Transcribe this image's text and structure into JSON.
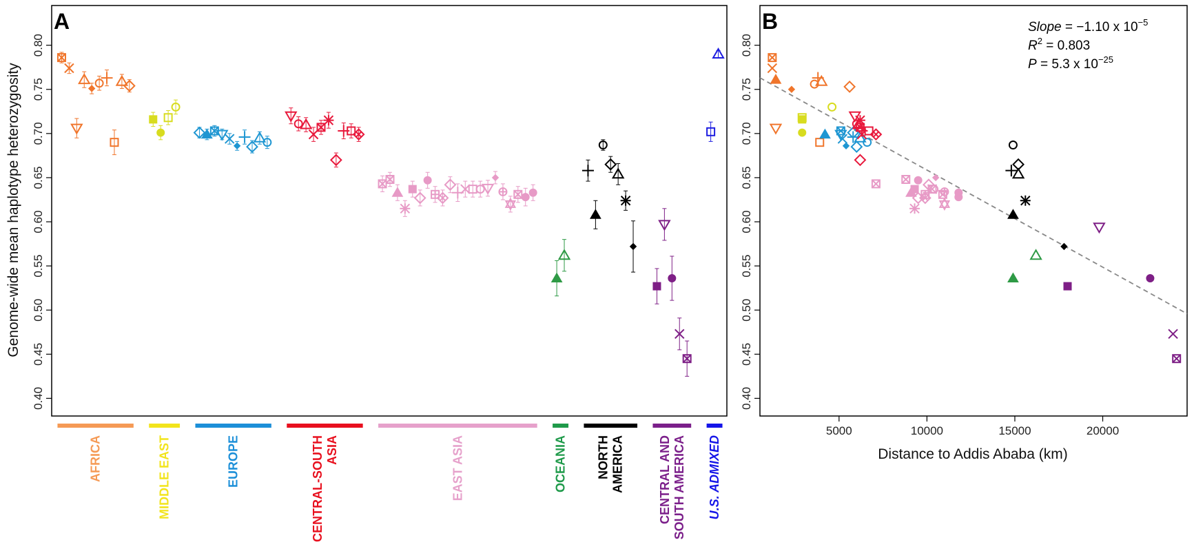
{
  "colors": {
    "AFRICA": "#F0752B",
    "MIDDLE EAST": "#D8DC1F",
    "EUROPE": "#1E96D2",
    "CENTRAL-SOUTH ASIA": "#E8193C",
    "EAST ASIA": "#E79AC6",
    "OCEANIA": "#2E9A45",
    "NORTH AMERICA": "#000000",
    "CENTRAL AND SOUTH AMERICA": "#7E1F86",
    "U.S. ADMIXED": "#1C1CE0"
  },
  "bar_colors": {
    "AFRICA": "#F59A55",
    "MIDDLE EAST": "#F2E41C",
    "EUROPE": "#1C8FD8",
    "CENTRAL-SOUTH ASIA": "#E8101E",
    "EAST ASIA": "#E6A1CB",
    "OCEANIA": "#1F9A4A",
    "NORTH AMERICA": "#000000",
    "CENTRAL AND SOUTH AMERICA": "#7B1F8A",
    "U.S. ADMIXED": "#1515E8"
  },
  "chart_data": [
    {
      "type": "scatter",
      "panel": "A",
      "title": "",
      "ylabel": "Genome-wide mean haplotype heterozygosity",
      "xlabel": "",
      "ylim": [
        0.38,
        0.845
      ],
      "yticks": [
        "0.40",
        "0.45",
        "0.50",
        "0.55",
        "0.60",
        "0.65",
        "0.70",
        "0.75",
        "0.80"
      ],
      "region_labels": [
        {
          "region": "AFRICA",
          "lines": [
            "AFRICA"
          ]
        },
        {
          "region": "MIDDLE EAST",
          "lines": [
            "MIDDLE EAST"
          ]
        },
        {
          "region": "EUROPE",
          "lines": [
            "EUROPE"
          ]
        },
        {
          "region": "CENTRAL-SOUTH ASIA",
          "lines": [
            "CENTRAL-SOUTH",
            "ASIA"
          ]
        },
        {
          "region": "EAST ASIA",
          "lines": [
            "EAST ASIA"
          ]
        },
        {
          "region": "OCEANIA",
          "lines": [
            "OCEANIA"
          ]
        },
        {
          "region": "NORTH AMERICA",
          "lines": [
            "NORTH",
            "AMERICA"
          ]
        },
        {
          "region": "CENTRAL AND SOUTH AMERICA",
          "lines": [
            "CENTRAL AND",
            "SOUTH AMERICA"
          ]
        },
        {
          "region": "U.S. ADMIXED",
          "lines": [
            "U.S. ADMIXED"
          ]
        }
      ],
      "groups": [
        {
          "region": "AFRICA",
          "points": [
            {
              "y": 0.786,
              "err": 0.006,
              "m": "sqx"
            },
            {
              "y": 0.774,
              "err": 0.006,
              "m": "x"
            },
            {
              "y": 0.706,
              "err": 0.011,
              "m": "tridown"
            },
            {
              "y": 0.761,
              "err": 0.009,
              "m": "tri"
            },
            {
              "y": 0.751,
              "err": 0.006,
              "m": "dia"
            },
            {
              "y": 0.757,
              "err": 0.008,
              "m": "circ"
            },
            {
              "y": 0.763,
              "err": 0.009,
              "m": "plus"
            },
            {
              "y": 0.69,
              "err": 0.014,
              "m": "sq"
            },
            {
              "y": 0.759,
              "err": 0.008,
              "m": "tri"
            },
            {
              "y": 0.754,
              "err": 0.007,
              "m": "diamond"
            }
          ]
        },
        {
          "region": "MIDDLE EAST",
          "points": [
            {
              "y": 0.716,
              "err": 0.008,
              "m": "sqf"
            },
            {
              "y": 0.701,
              "err": 0.008,
              "m": "circf"
            },
            {
              "y": 0.718,
              "err": 0.008,
              "m": "sq"
            },
            {
              "y": 0.73,
              "err": 0.008,
              "m": "circ"
            }
          ]
        },
        {
          "region": "EUROPE",
          "points": [
            {
              "y": 0.701,
              "err": 0.006,
              "m": "diamond"
            },
            {
              "y": 0.699,
              "err": 0.006,
              "m": "trif"
            },
            {
              "y": 0.703,
              "err": 0.006,
              "m": "sqx"
            },
            {
              "y": 0.699,
              "err": 0.006,
              "m": "tridown"
            },
            {
              "y": 0.694,
              "err": 0.006,
              "m": "x"
            },
            {
              "y": 0.686,
              "err": 0.005,
              "m": "dia"
            },
            {
              "y": 0.696,
              "err": 0.008,
              "m": "plus"
            },
            {
              "y": 0.685,
              "err": 0.007,
              "m": "diamond"
            },
            {
              "y": 0.695,
              "err": 0.007,
              "m": "tri"
            },
            {
              "y": 0.69,
              "err": 0.007,
              "m": "circ"
            }
          ]
        },
        {
          "region": "CENTRAL-SOUTH ASIA",
          "points": [
            {
              "y": 0.72,
              "err": 0.009,
              "m": "tridown"
            },
            {
              "y": 0.711,
              "err": 0.008,
              "m": "circ"
            },
            {
              "y": 0.71,
              "err": 0.008,
              "m": "tri"
            },
            {
              "y": 0.699,
              "err": 0.008,
              "m": "x"
            },
            {
              "y": 0.707,
              "err": 0.008,
              "m": "sqx"
            },
            {
              "y": 0.715,
              "err": 0.009,
              "m": "star"
            },
            {
              "y": 0.67,
              "err": 0.008,
              "m": "diamond"
            },
            {
              "y": 0.703,
              "err": 0.009,
              "m": "plus"
            },
            {
              "y": 0.703,
              "err": 0.008,
              "m": "sq"
            },
            {
              "y": 0.699,
              "err": 0.008,
              "m": "diax"
            }
          ]
        },
        {
          "region": "EAST ASIA",
          "points": [
            {
              "y": 0.643,
              "err": 0.009,
              "m": "sqx"
            },
            {
              "y": 0.648,
              "err": 0.008,
              "m": "sqx"
            },
            {
              "y": 0.633,
              "err": 0.009,
              "m": "trif"
            },
            {
              "y": 0.615,
              "err": 0.009,
              "m": "star"
            },
            {
              "y": 0.637,
              "err": 0.009,
              "m": "sqf"
            },
            {
              "y": 0.627,
              "err": 0.009,
              "m": "diamond"
            },
            {
              "y": 0.647,
              "err": 0.009,
              "m": "circf"
            },
            {
              "y": 0.631,
              "err": 0.009,
              "m": "sqplus"
            },
            {
              "y": 0.627,
              "err": 0.009,
              "m": "diax"
            },
            {
              "y": 0.642,
              "err": 0.009,
              "m": "diamond"
            },
            {
              "y": 0.633,
              "err": 0.01,
              "m": "plus"
            },
            {
              "y": 0.637,
              "err": 0.009,
              "m": "x"
            },
            {
              "y": 0.637,
              "err": 0.009,
              "m": "sq"
            },
            {
              "y": 0.637,
              "err": 0.009,
              "m": "circ"
            },
            {
              "y": 0.638,
              "err": 0.009,
              "m": "tridown"
            },
            {
              "y": 0.65,
              "err": 0.007,
              "m": "dia"
            },
            {
              "y": 0.634,
              "err": 0.009,
              "m": "circplus"
            },
            {
              "y": 0.62,
              "err": 0.009,
              "m": "stard"
            },
            {
              "y": 0.631,
              "err": 0.009,
              "m": "sqx"
            },
            {
              "y": 0.628,
              "err": 0.01,
              "m": "circf"
            },
            {
              "y": 0.633,
              "err": 0.009,
              "m": "circf"
            }
          ]
        },
        {
          "region": "OCEANIA",
          "points": [
            {
              "y": 0.536,
              "err": 0.02,
              "m": "trif"
            },
            {
              "y": 0.562,
              "err": 0.018,
              "m": "tri"
            }
          ]
        },
        {
          "region": "NORTH AMERICA",
          "points": [
            {
              "y": 0.658,
              "err": 0.012,
              "m": "plus"
            },
            {
              "y": 0.608,
              "err": 0.016,
              "m": "trif"
            },
            {
              "y": 0.687,
              "err": 0.006,
              "m": "circ"
            },
            {
              "y": 0.665,
              "err": 0.009,
              "m": "diamond"
            },
            {
              "y": 0.654,
              "err": 0.012,
              "m": "tri"
            },
            {
              "y": 0.624,
              "err": 0.011,
              "m": "star"
            },
            {
              "y": 0.572,
              "err": 0.029,
              "m": "dia"
            }
          ]
        },
        {
          "region": "CENTRAL AND SOUTH AMERICA",
          "points": [
            {
              "y": 0.527,
              "err": 0.02,
              "m": "sqf"
            },
            {
              "y": 0.597,
              "err": 0.018,
              "m": "tridown"
            },
            {
              "y": 0.536,
              "err": 0.025,
              "m": "circf"
            },
            {
              "y": 0.473,
              "err": 0.018,
              "m": "x"
            },
            {
              "y": 0.445,
              "err": 0.02,
              "m": "sqx"
            }
          ]
        },
        {
          "region": "U.S. ADMIXED",
          "points": [
            {
              "y": 0.702,
              "err": 0.011,
              "m": "sq"
            },
            {
              "y": 0.79,
              "err": 0.004,
              "m": "tri"
            }
          ]
        }
      ]
    },
    {
      "type": "scatter",
      "panel": "B",
      "title": "",
      "xlabel": "Distance to Addis Ababa (km)",
      "ylabel": "",
      "xlim": [
        500,
        24800
      ],
      "ylim": [
        0.38,
        0.845
      ],
      "xticks": [
        "5000",
        "10000",
        "15000",
        "20000"
      ],
      "yticks": [
        "0.40",
        "0.45",
        "0.50",
        "0.55",
        "0.60",
        "0.65",
        "0.70",
        "0.75",
        "0.80"
      ],
      "regression": {
        "slope": -1.1e-05,
        "intercept": 0.7686,
        "line_style": "dashed",
        "color": "#888888"
      },
      "stats": {
        "slope_label": "Slope",
        "slope_value": " = −1.10 x 10",
        "slope_exp": "−5",
        "r2_label": "R",
        "r2_sup": "2",
        "r2_value": " = 0.803",
        "p_label": "P",
        "p_value": " = 5.3 x 10",
        "p_exp": "−25"
      },
      "points": [
        {
          "x": 1200,
          "y": 0.786,
          "r": "AFRICA",
          "m": "sqx"
        },
        {
          "x": 1200,
          "y": 0.774,
          "r": "AFRICA",
          "m": "x"
        },
        {
          "x": 1400,
          "y": 0.761,
          "r": "AFRICA",
          "m": "trif"
        },
        {
          "x": 1400,
          "y": 0.706,
          "r": "AFRICA",
          "m": "tridown"
        },
        {
          "x": 2300,
          "y": 0.75,
          "r": "AFRICA",
          "m": "dia"
        },
        {
          "x": 3600,
          "y": 0.756,
          "r": "AFRICA",
          "m": "circ"
        },
        {
          "x": 3800,
          "y": 0.763,
          "r": "AFRICA",
          "m": "plus"
        },
        {
          "x": 4000,
          "y": 0.759,
          "r": "AFRICA",
          "m": "tri"
        },
        {
          "x": 3900,
          "y": 0.69,
          "r": "AFRICA",
          "m": "sq"
        },
        {
          "x": 5600,
          "y": 0.753,
          "r": "AFRICA",
          "m": "diamond"
        },
        {
          "x": 2900,
          "y": 0.716,
          "r": "MIDDLE EAST",
          "m": "sqf"
        },
        {
          "x": 2900,
          "y": 0.718,
          "r": "MIDDLE EAST",
          "m": "sq"
        },
        {
          "x": 2900,
          "y": 0.701,
          "r": "MIDDLE EAST",
          "m": "circf"
        },
        {
          "x": 4600,
          "y": 0.73,
          "r": "MIDDLE EAST",
          "m": "circ"
        },
        {
          "x": 4200,
          "y": 0.699,
          "r": "EUROPE",
          "m": "trif"
        },
        {
          "x": 5100,
          "y": 0.703,
          "r": "EUROPE",
          "m": "sqx"
        },
        {
          "x": 5100,
          "y": 0.699,
          "r": "EUROPE",
          "m": "tridown"
        },
        {
          "x": 5200,
          "y": 0.694,
          "r": "EUROPE",
          "m": "x"
        },
        {
          "x": 5400,
          "y": 0.686,
          "r": "EUROPE",
          "m": "dia"
        },
        {
          "x": 5800,
          "y": 0.696,
          "r": "EUROPE",
          "m": "plus"
        },
        {
          "x": 6000,
          "y": 0.685,
          "r": "EUROPE",
          "m": "diamond"
        },
        {
          "x": 6200,
          "y": 0.695,
          "r": "EUROPE",
          "m": "tri"
        },
        {
          "x": 6600,
          "y": 0.69,
          "r": "EUROPE",
          "m": "circ"
        },
        {
          "x": 5800,
          "y": 0.701,
          "r": "EUROPE",
          "m": "diamond"
        },
        {
          "x": 5900,
          "y": 0.72,
          "r": "CENTRAL-SOUTH ASIA",
          "m": "tridown"
        },
        {
          "x": 6000,
          "y": 0.711,
          "r": "CENTRAL-SOUTH ASIA",
          "m": "circ"
        },
        {
          "x": 6100,
          "y": 0.71,
          "r": "CENTRAL-SOUTH ASIA",
          "m": "tri"
        },
        {
          "x": 6200,
          "y": 0.715,
          "r": "CENTRAL-SOUTH ASIA",
          "m": "star"
        },
        {
          "x": 6200,
          "y": 0.707,
          "r": "CENTRAL-SOUTH ASIA",
          "m": "sqx"
        },
        {
          "x": 6300,
          "y": 0.703,
          "r": "CENTRAL-SOUTH ASIA",
          "m": "plus"
        },
        {
          "x": 6300,
          "y": 0.699,
          "r": "CENTRAL-SOUTH ASIA",
          "m": "x"
        },
        {
          "x": 6200,
          "y": 0.67,
          "r": "CENTRAL-SOUTH ASIA",
          "m": "diamond"
        },
        {
          "x": 6700,
          "y": 0.703,
          "r": "CENTRAL-SOUTH ASIA",
          "m": "sq"
        },
        {
          "x": 7100,
          "y": 0.699,
          "r": "CENTRAL-SOUTH ASIA",
          "m": "diax"
        },
        {
          "x": 7100,
          "y": 0.643,
          "r": "EAST ASIA",
          "m": "sqx"
        },
        {
          "x": 8800,
          "y": 0.648,
          "r": "EAST ASIA",
          "m": "sqx"
        },
        {
          "x": 9100,
          "y": 0.633,
          "r": "EAST ASIA",
          "m": "trif"
        },
        {
          "x": 9300,
          "y": 0.615,
          "r": "EAST ASIA",
          "m": "star"
        },
        {
          "x": 9300,
          "y": 0.637,
          "r": "EAST ASIA",
          "m": "sqf"
        },
        {
          "x": 9500,
          "y": 0.627,
          "r": "EAST ASIA",
          "m": "diamond"
        },
        {
          "x": 9500,
          "y": 0.647,
          "r": "EAST ASIA",
          "m": "circf"
        },
        {
          "x": 9900,
          "y": 0.631,
          "r": "EAST ASIA",
          "m": "sqplus"
        },
        {
          "x": 9900,
          "y": 0.627,
          "r": "EAST ASIA",
          "m": "diax"
        },
        {
          "x": 10100,
          "y": 0.642,
          "r": "EAST ASIA",
          "m": "diamond"
        },
        {
          "x": 10100,
          "y": 0.633,
          "r": "EAST ASIA",
          "m": "plus"
        },
        {
          "x": 10300,
          "y": 0.637,
          "r": "EAST ASIA",
          "m": "x"
        },
        {
          "x": 10300,
          "y": 0.637,
          "r": "EAST ASIA",
          "m": "sq"
        },
        {
          "x": 10400,
          "y": 0.637,
          "r": "EAST ASIA",
          "m": "circ"
        },
        {
          "x": 10500,
          "y": 0.65,
          "r": "EAST ASIA",
          "m": "dia"
        },
        {
          "x": 11000,
          "y": 0.634,
          "r": "EAST ASIA",
          "m": "circplus"
        },
        {
          "x": 11000,
          "y": 0.62,
          "r": "EAST ASIA",
          "m": "stard"
        },
        {
          "x": 10900,
          "y": 0.631,
          "r": "EAST ASIA",
          "m": "sqx"
        },
        {
          "x": 11800,
          "y": 0.628,
          "r": "EAST ASIA",
          "m": "circf"
        },
        {
          "x": 11800,
          "y": 0.633,
          "r": "EAST ASIA",
          "m": "circf"
        },
        {
          "x": 14900,
          "y": 0.536,
          "r": "OCEANIA",
          "m": "trif"
        },
        {
          "x": 16200,
          "y": 0.562,
          "r": "OCEANIA",
          "m": "tri"
        },
        {
          "x": 14800,
          "y": 0.658,
          "r": "NORTH AMERICA",
          "m": "plus"
        },
        {
          "x": 14900,
          "y": 0.608,
          "r": "NORTH AMERICA",
          "m": "trif"
        },
        {
          "x": 14900,
          "y": 0.687,
          "r": "NORTH AMERICA",
          "m": "circ"
        },
        {
          "x": 15200,
          "y": 0.665,
          "r": "NORTH AMERICA",
          "m": "diamond"
        },
        {
          "x": 15200,
          "y": 0.654,
          "r": "NORTH AMERICA",
          "m": "tri"
        },
        {
          "x": 15600,
          "y": 0.624,
          "r": "NORTH AMERICA",
          "m": "star"
        },
        {
          "x": 17800,
          "y": 0.572,
          "r": "NORTH AMERICA",
          "m": "dia"
        },
        {
          "x": 18000,
          "y": 0.527,
          "r": "CENTRAL AND SOUTH AMERICA",
          "m": "sqf"
        },
        {
          "x": 19800,
          "y": 0.594,
          "r": "CENTRAL AND SOUTH AMERICA",
          "m": "tridown"
        },
        {
          "x": 22700,
          "y": 0.536,
          "r": "CENTRAL AND SOUTH AMERICA",
          "m": "circf"
        },
        {
          "x": 24000,
          "y": 0.473,
          "r": "CENTRAL AND SOUTH AMERICA",
          "m": "x"
        },
        {
          "x": 24200,
          "y": 0.445,
          "r": "CENTRAL AND SOUTH AMERICA",
          "m": "sqx"
        }
      ]
    }
  ]
}
